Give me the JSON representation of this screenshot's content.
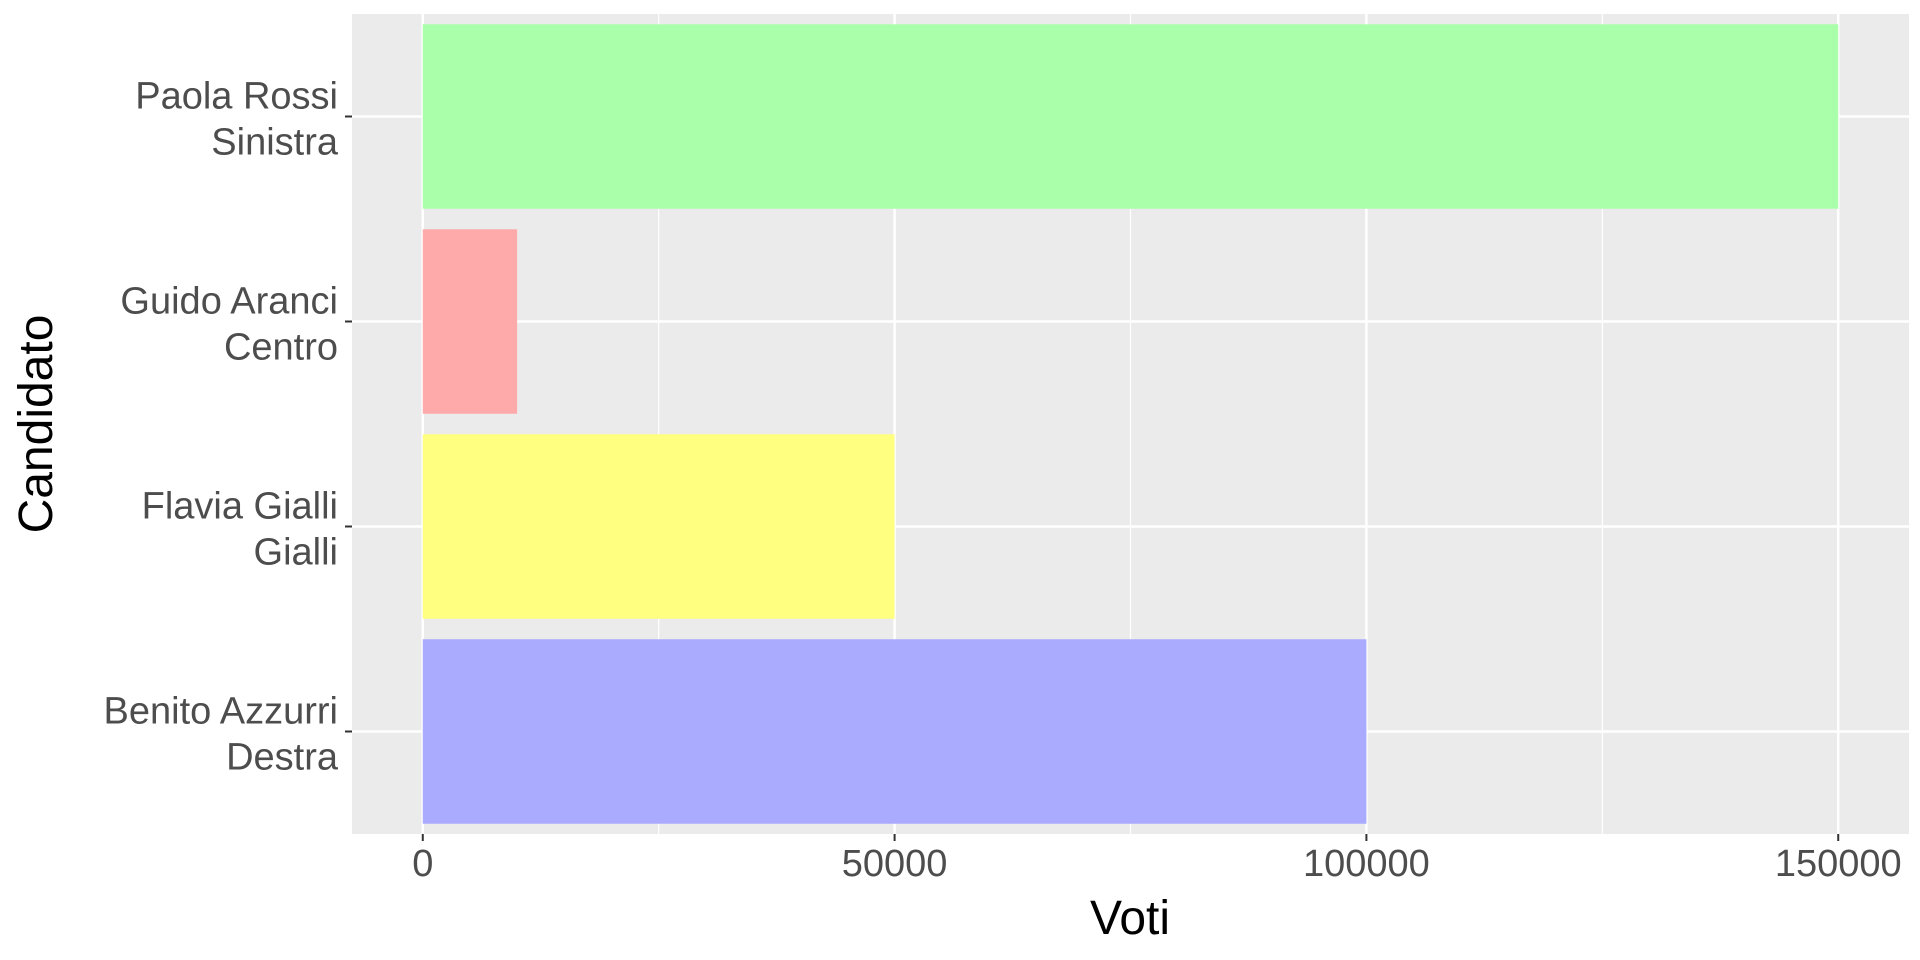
{
  "chart_data": {
    "type": "bar",
    "orientation": "horizontal",
    "xlabel": "Voti",
    "ylabel": "Candidato",
    "xlim": [
      -7500,
      157500
    ],
    "x_ticks": [
      "0",
      "50000",
      "100000",
      "150000"
    ],
    "x_tick_values": [
      0,
      50000,
      100000,
      150000
    ],
    "x_minor_values": [
      25000,
      75000,
      125000
    ],
    "grid": true,
    "panel_background": "#ebebeb",
    "categories": [
      {
        "name": "Paola Rossi",
        "party": "Sinistra",
        "value": 150000,
        "color": "#aaffaa"
      },
      {
        "name": "Guido Aranci",
        "party": "Centro",
        "value": 10000,
        "color": "#ffaaaa"
      },
      {
        "name": "Flavia Gialli",
        "party": "Gialli",
        "value": 50000,
        "color": "#ffff80"
      },
      {
        "name": "Benito Azzurri",
        "party": "Destra",
        "value": 100000,
        "color": "#aaaaff"
      }
    ]
  }
}
